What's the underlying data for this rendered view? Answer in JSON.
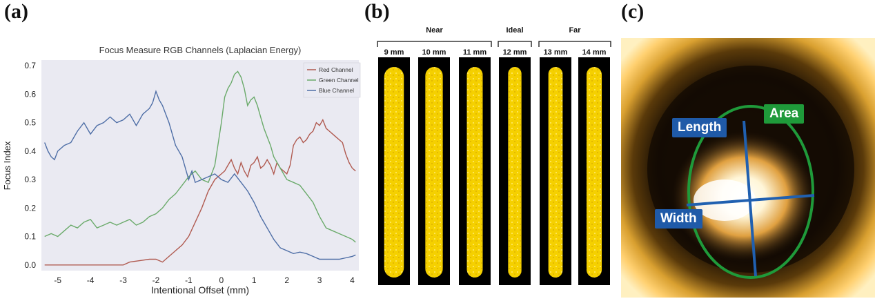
{
  "panels": {
    "a_label": "(a)",
    "b_label": "(b)",
    "c_label": "(c)"
  },
  "chart_data": {
    "type": "line",
    "title": "Focus Measure RGB Channels (Laplacian Energy)",
    "xlabel": "Intentional Offset (mm)",
    "ylabel": "Focus Index",
    "xlim": [
      -5.5,
      4.2
    ],
    "ylim": [
      -0.02,
      0.72
    ],
    "xticks": [
      -5,
      -4,
      -3,
      -2,
      -1,
      0,
      1,
      2,
      3,
      4
    ],
    "yticks": [
      0.0,
      0.1,
      0.2,
      0.3,
      0.4,
      0.5,
      0.6,
      0.7
    ],
    "grid": false,
    "legend_position": "top-right",
    "series": [
      {
        "name": "Red Channel",
        "color": "#b05a50",
        "x": [
          -5.4,
          -4.5,
          -3.5,
          -3.0,
          -2.8,
          -2.5,
          -2.2,
          -2.0,
          -1.8,
          -1.6,
          -1.4,
          -1.2,
          -1.0,
          -0.8,
          -0.6,
          -0.4,
          -0.2,
          0.0,
          0.1,
          0.2,
          0.3,
          0.4,
          0.5,
          0.6,
          0.7,
          0.8,
          0.9,
          1.0,
          1.1,
          1.2,
          1.3,
          1.4,
          1.5,
          1.6,
          1.7,
          1.8,
          1.9,
          2.0,
          2.1,
          2.2,
          2.3,
          2.4,
          2.5,
          2.6,
          2.7,
          2.8,
          2.9,
          3.0,
          3.1,
          3.2,
          3.3,
          3.4,
          3.5,
          3.6,
          3.7,
          3.8,
          3.9,
          4.0,
          4.1
        ],
        "y": [
          0.0,
          0.0,
          0.0,
          0.0,
          0.01,
          0.015,
          0.02,
          0.02,
          0.01,
          0.03,
          0.05,
          0.07,
          0.1,
          0.15,
          0.2,
          0.26,
          0.3,
          0.32,
          0.33,
          0.35,
          0.37,
          0.34,
          0.32,
          0.36,
          0.33,
          0.31,
          0.35,
          0.36,
          0.38,
          0.34,
          0.35,
          0.37,
          0.35,
          0.32,
          0.36,
          0.34,
          0.33,
          0.32,
          0.35,
          0.42,
          0.44,
          0.45,
          0.43,
          0.44,
          0.46,
          0.47,
          0.5,
          0.49,
          0.51,
          0.48,
          0.47,
          0.46,
          0.45,
          0.44,
          0.43,
          0.39,
          0.36,
          0.34,
          0.33
        ]
      },
      {
        "name": "Green Channel",
        "color": "#6aaa6a",
        "x": [
          -5.4,
          -5.2,
          -5.0,
          -4.8,
          -4.6,
          -4.4,
          -4.2,
          -4.0,
          -3.8,
          -3.6,
          -3.4,
          -3.2,
          -3.0,
          -2.8,
          -2.6,
          -2.4,
          -2.2,
          -2.0,
          -1.8,
          -1.6,
          -1.4,
          -1.2,
          -1.0,
          -0.8,
          -0.6,
          -0.4,
          -0.2,
          0.0,
          0.1,
          0.2,
          0.3,
          0.4,
          0.5,
          0.6,
          0.7,
          0.8,
          0.9,
          1.0,
          1.1,
          1.2,
          1.3,
          1.4,
          1.5,
          1.6,
          1.8,
          2.0,
          2.2,
          2.4,
          2.6,
          2.8,
          3.0,
          3.2,
          3.4,
          3.6,
          3.8,
          4.0,
          4.1
        ],
        "y": [
          0.1,
          0.11,
          0.1,
          0.12,
          0.14,
          0.13,
          0.15,
          0.16,
          0.13,
          0.14,
          0.15,
          0.14,
          0.15,
          0.16,
          0.14,
          0.15,
          0.17,
          0.18,
          0.2,
          0.23,
          0.25,
          0.28,
          0.31,
          0.33,
          0.3,
          0.29,
          0.35,
          0.5,
          0.59,
          0.62,
          0.64,
          0.67,
          0.68,
          0.66,
          0.62,
          0.56,
          0.58,
          0.59,
          0.56,
          0.52,
          0.48,
          0.45,
          0.42,
          0.38,
          0.34,
          0.3,
          0.29,
          0.28,
          0.25,
          0.22,
          0.17,
          0.13,
          0.12,
          0.11,
          0.1,
          0.09,
          0.08
        ]
      },
      {
        "name": "Blue Channel",
        "color": "#4e6ea6",
        "x": [
          -5.4,
          -5.3,
          -5.2,
          -5.1,
          -5.0,
          -4.8,
          -4.6,
          -4.4,
          -4.2,
          -4.0,
          -3.8,
          -3.6,
          -3.4,
          -3.2,
          -3.0,
          -2.8,
          -2.6,
          -2.4,
          -2.2,
          -2.1,
          -2.0,
          -1.9,
          -1.8,
          -1.6,
          -1.4,
          -1.2,
          -1.0,
          -0.9,
          -0.8,
          -0.6,
          -0.4,
          -0.2,
          0.0,
          0.2,
          0.4,
          0.6,
          0.8,
          1.0,
          1.2,
          1.4,
          1.6,
          1.8,
          2.0,
          2.2,
          2.4,
          2.6,
          2.8,
          3.0,
          3.2,
          3.4,
          3.6,
          3.8,
          4.0,
          4.1
        ],
        "y": [
          0.43,
          0.4,
          0.38,
          0.37,
          0.4,
          0.42,
          0.43,
          0.47,
          0.5,
          0.46,
          0.49,
          0.5,
          0.52,
          0.5,
          0.51,
          0.53,
          0.49,
          0.53,
          0.55,
          0.57,
          0.61,
          0.58,
          0.56,
          0.5,
          0.42,
          0.38,
          0.3,
          0.33,
          0.29,
          0.3,
          0.31,
          0.32,
          0.3,
          0.29,
          0.32,
          0.29,
          0.26,
          0.22,
          0.17,
          0.13,
          0.09,
          0.06,
          0.05,
          0.04,
          0.045,
          0.04,
          0.03,
          0.02,
          0.02,
          0.02,
          0.02,
          0.025,
          0.03,
          0.035
        ]
      }
    ]
  },
  "beads": {
    "groups": [
      {
        "name": "Near",
        "span": [
          0,
          2
        ]
      },
      {
        "name": "Ideal",
        "span": [
          3,
          3
        ]
      },
      {
        "name": "Far",
        "span": [
          4,
          5
        ]
      }
    ],
    "samples": [
      {
        "label": "9 mm",
        "width_fraction": 0.62
      },
      {
        "label": "10 mm",
        "width_fraction": 0.55
      },
      {
        "label": "11 mm",
        "width_fraction": 0.5
      },
      {
        "label": "12 mm",
        "width_fraction": 0.42
      },
      {
        "label": "13 mm",
        "width_fraction": 0.45
      },
      {
        "label": "14 mm",
        "width_fraction": 0.48
      }
    ],
    "bead_color": "#f5d000",
    "background_color": "#000000"
  },
  "melt_pool": {
    "labels": {
      "length": "Length",
      "width": "Width",
      "area": "Area"
    },
    "colors": {
      "length_tag": "#1f5aa8",
      "width_tag": "#1f5aa8",
      "area_tag": "#1f9a3a",
      "ellipse": "#1f9a3a",
      "axes": "#2060b0"
    }
  }
}
